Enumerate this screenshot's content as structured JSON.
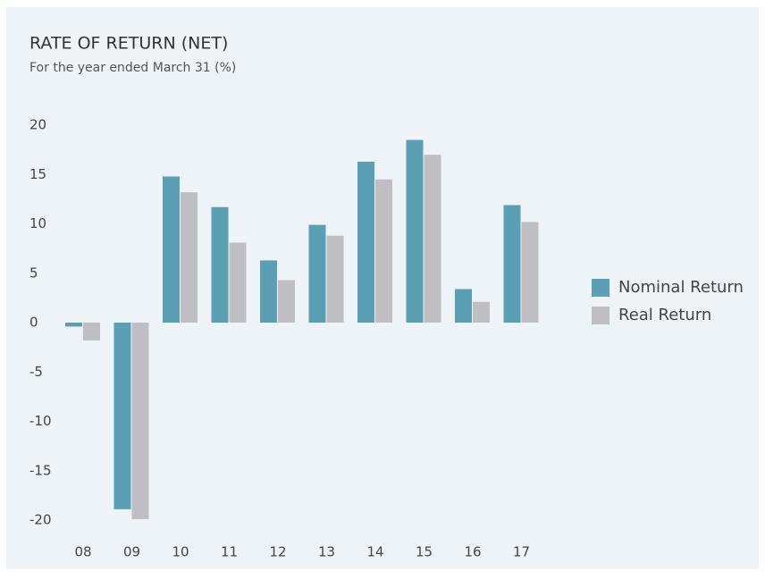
{
  "chart_data": {
    "type": "bar",
    "title": "RATE OF RETURN (NET)",
    "subtitle": "For the year ended March 31 (%)",
    "categories": [
      "08",
      "09",
      "10",
      "11",
      "12",
      "13",
      "14",
      "15",
      "16",
      "17"
    ],
    "series": [
      {
        "name": "Nominal Return",
        "color": "#5b9fb4",
        "values": [
          -0.4,
          -18.9,
          14.8,
          11.7,
          6.3,
          9.9,
          16.3,
          18.5,
          3.4,
          11.9
        ]
      },
      {
        "name": "Real Return",
        "color": "#bfbfc3",
        "values": [
          -1.8,
          -19.9,
          13.2,
          8.1,
          4.3,
          8.8,
          14.5,
          17.0,
          2.1,
          10.2
        ]
      }
    ],
    "ylim": [
      -20,
      20
    ],
    "yticks": [
      -20,
      -15,
      -10,
      -5,
      0,
      5,
      10,
      15,
      20
    ],
    "grid": false,
    "legend": "right"
  }
}
